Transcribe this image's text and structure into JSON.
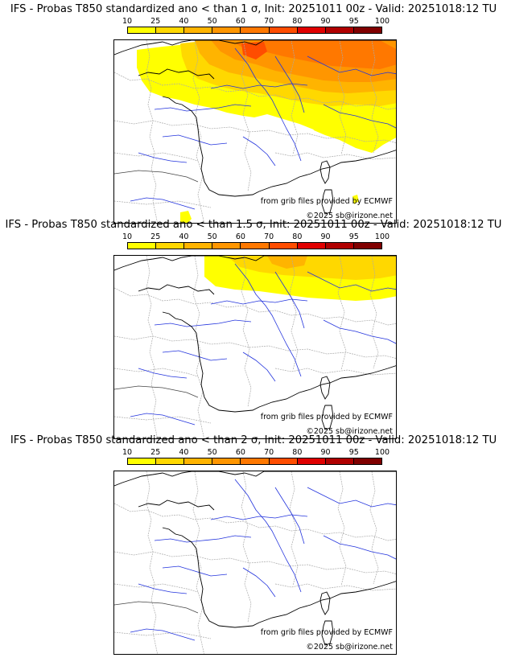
{
  "colorbar": {
    "ticks": [
      "10",
      "25",
      "40",
      "50",
      "60",
      "70",
      "80",
      "90",
      "95",
      "100"
    ],
    "colors": [
      "#ffff00",
      "#ffd800",
      "#ffb400",
      "#ff9600",
      "#ff7800",
      "#ff4d00",
      "#e00000",
      "#b00000",
      "#800000"
    ]
  },
  "panels": [
    {
      "title": "IFS - Probas T850  standardized ano < than 1 σ, Init: 20251011 00z - Valid: 20251018:12 TU",
      "sigma": 1,
      "coverage": "north-wide",
      "credit_grib": "from grib files provided by ECMWF",
      "credit_copy": "©2025 sb@irizone.net"
    },
    {
      "title": "IFS - Probas T850  standardized ano < than 1.5 σ, Init: 20251011 00z - Valid: 20251018:12 TU",
      "sigma": 1.5,
      "coverage": "north-limited",
      "credit_grib": "from grib files provided by ECMWF",
      "credit_copy": "©2025 sb@irizone.net"
    },
    {
      "title": "IFS - Probas T850  standardized ano < than 2 σ, Init: 20251011 00z - Valid: 20251018:12 TU",
      "sigma": 2,
      "coverage": "none",
      "credit_grib": "from grib files provided by ECMWF",
      "credit_copy": "©2025 sb@irizone.net"
    }
  ]
}
